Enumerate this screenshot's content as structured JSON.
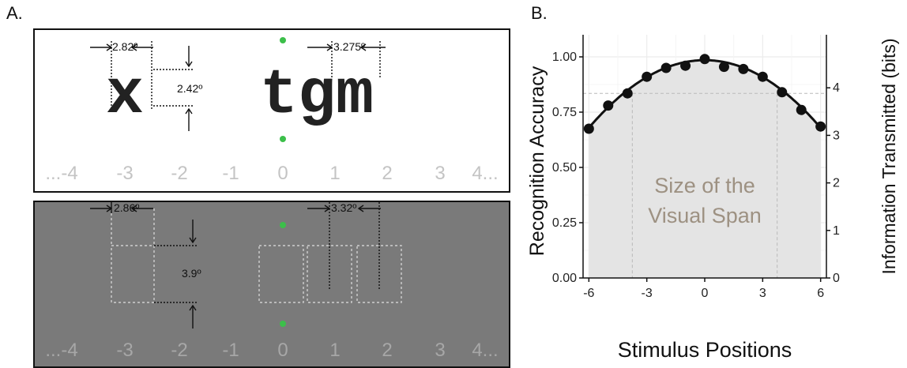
{
  "figure": {
    "panel_a_label": "A.",
    "panel_b_label": "B."
  },
  "panel_a": {
    "top": {
      "positions": [
        "...-4",
        "-3",
        "-2",
        "-1",
        "0",
        "1",
        "2",
        "3",
        "4..."
      ],
      "single_letter": "x",
      "trigram": "tgm",
      "letter_width_label": "2.82º",
      "letter_height_label": "2.42º",
      "letter_spacing_label": "3.275º"
    },
    "bottom": {
      "positions": [
        "...-4",
        "-3",
        "-2",
        "-1",
        "0",
        "1",
        "2",
        "3",
        "4..."
      ],
      "box_width_label": "2.86º",
      "box_height_label": "3.9º",
      "box_spacing_label": "3.32º"
    }
  },
  "chart_data": {
    "type": "scatter",
    "xlabel": "Stimulus Positions",
    "ylabel": "Recognition Accuracy",
    "ylabel_right": "Information Transmitted (bits)",
    "xlim": [
      -6.3,
      6.3
    ],
    "ylim": [
      0,
      1.1
    ],
    "x_ticks": [
      -6,
      -3,
      0,
      3,
      6
    ],
    "y_ticks": [
      0.0,
      0.25,
      0.5,
      0.75,
      1.0
    ],
    "y_tick_labels": [
      "0.00",
      "0.25",
      "0.50",
      "0.75",
      "1.00"
    ],
    "right_ticks_bits": [
      0,
      1,
      2,
      3,
      4
    ],
    "grid": true,
    "points": {
      "x": [
        -6,
        -5,
        -4,
        -3,
        -2,
        -1,
        0,
        1,
        2,
        3,
        4,
        5,
        6
      ],
      "y": [
        0.675,
        0.78,
        0.835,
        0.91,
        0.95,
        0.96,
        0.99,
        0.955,
        0.945,
        0.91,
        0.84,
        0.76,
        0.685
      ]
    },
    "fit_peak": 0.985,
    "fit_curvature": 0.0085,
    "threshold_accuracy": 0.835,
    "threshold_positions": [
      -3.75,
      3.75
    ],
    "annotation": "Size of the Visual Span",
    "colors": {
      "points": "#111111",
      "fit": "#111111",
      "shade": "#e4e4e4",
      "annotation": "#9d9182",
      "fixation": "#3cbf4a"
    }
  }
}
